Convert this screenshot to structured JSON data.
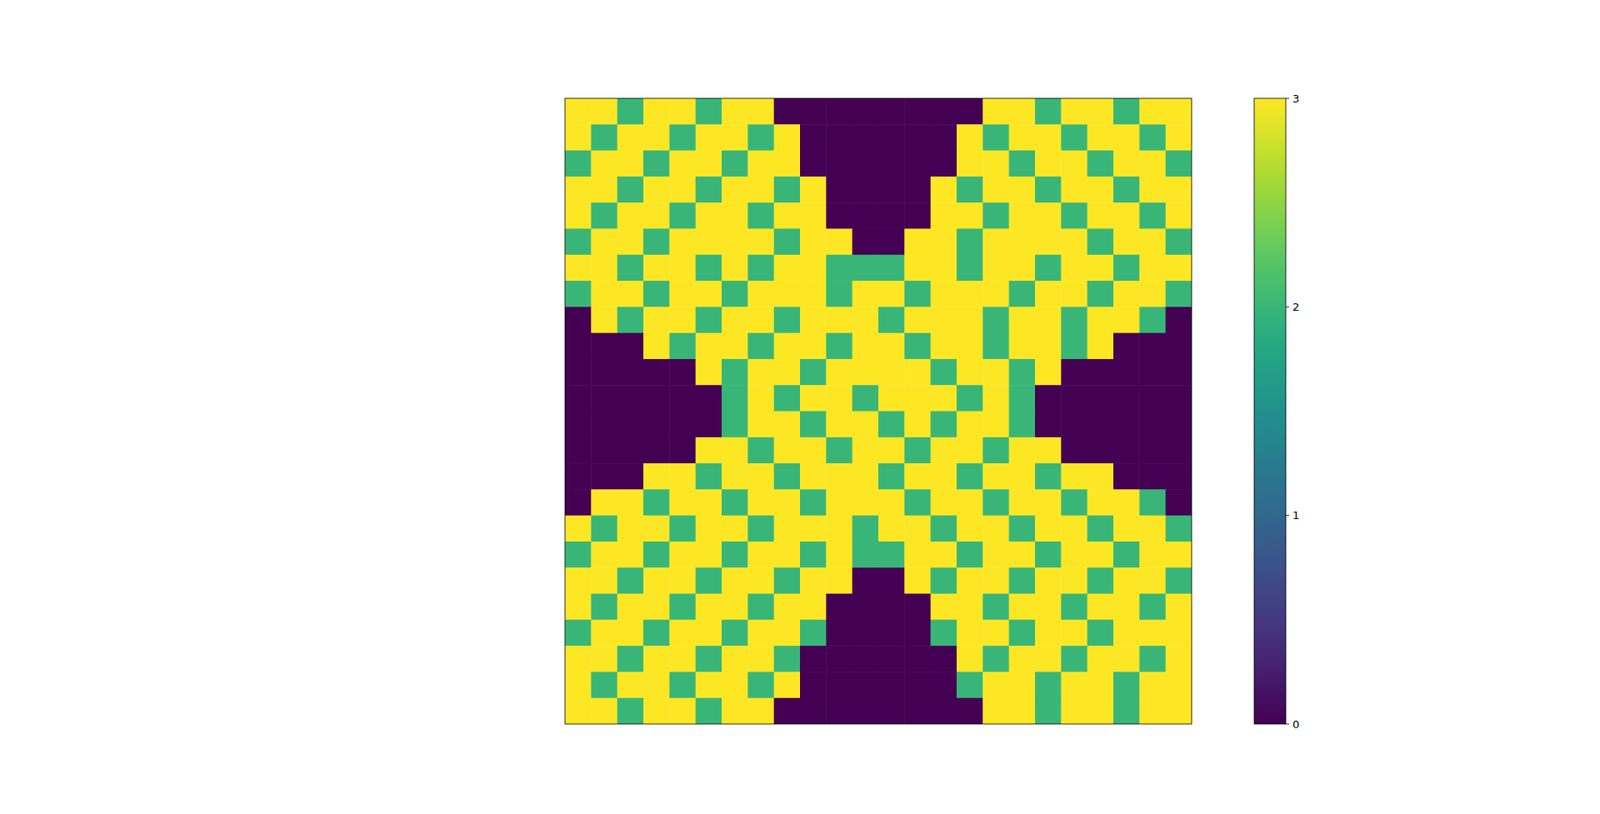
{
  "chart_data": {
    "type": "heatmap",
    "tick_labels": false,
    "cells": [
      [
        3,
        3,
        2,
        3,
        3,
        2,
        3,
        3,
        0,
        0,
        0,
        0,
        0,
        0,
        0,
        0,
        3,
        3,
        2,
        3,
        3,
        2,
        3,
        3
      ],
      [
        3,
        2,
        3,
        3,
        2,
        3,
        3,
        2,
        3,
        0,
        0,
        0,
        0,
        0,
        0,
        3,
        2,
        3,
        3,
        2,
        3,
        3,
        2,
        3
      ],
      [
        2,
        3,
        3,
        2,
        3,
        3,
        2,
        3,
        3,
        0,
        0,
        0,
        0,
        0,
        0,
        3,
        3,
        2,
        3,
        3,
        2,
        3,
        3,
        2
      ],
      [
        3,
        3,
        2,
        3,
        3,
        2,
        3,
        3,
        2,
        3,
        0,
        0,
        0,
        0,
        3,
        2,
        3,
        3,
        2,
        3,
        3,
        2,
        3,
        3
      ],
      [
        3,
        2,
        3,
        3,
        2,
        3,
        3,
        2,
        3,
        3,
        0,
        0,
        0,
        0,
        3,
        3,
        2,
        3,
        3,
        2,
        3,
        3,
        2,
        3
      ],
      [
        2,
        3,
        3,
        2,
        3,
        3,
        3,
        3,
        2,
        3,
        3,
        0,
        0,
        3,
        3,
        2,
        3,
        3,
        3,
        3,
        2,
        3,
        3,
        2
      ],
      [
        3,
        3,
        2,
        3,
        3,
        2,
        3,
        2,
        3,
        3,
        2,
        2,
        2,
        3,
        3,
        2,
        3,
        3,
        2,
        3,
        3,
        2,
        3,
        3
      ],
      [
        2,
        3,
        3,
        2,
        3,
        3,
        2,
        3,
        3,
        3,
        2,
        3,
        3,
        2,
        3,
        3,
        3,
        2,
        3,
        3,
        2,
        3,
        3,
        2
      ],
      [
        0,
        3,
        2,
        3,
        3,
        2,
        3,
        3,
        2,
        3,
        3,
        3,
        2,
        3,
        3,
        3,
        2,
        3,
        3,
        2,
        3,
        3,
        2,
        0
      ],
      [
        0,
        0,
        0,
        3,
        2,
        3,
        3,
        2,
        3,
        3,
        2,
        3,
        3,
        2,
        3,
        3,
        2,
        3,
        3,
        2,
        3,
        0,
        0,
        0
      ],
      [
        0,
        0,
        0,
        0,
        0,
        3,
        2,
        3,
        3,
        2,
        3,
        3,
        3,
        3,
        2,
        3,
        3,
        2,
        3,
        0,
        0,
        0,
        0,
        0
      ],
      [
        0,
        0,
        0,
        0,
        0,
        0,
        2,
        3,
        2,
        3,
        3,
        2,
        3,
        3,
        3,
        2,
        3,
        2,
        0,
        0,
        0,
        0,
        0,
        0
      ],
      [
        0,
        0,
        0,
        0,
        0,
        0,
        2,
        3,
        3,
        2,
        3,
        3,
        2,
        3,
        2,
        3,
        3,
        2,
        0,
        0,
        0,
        0,
        0,
        0
      ],
      [
        0,
        0,
        0,
        0,
        0,
        3,
        3,
        2,
        3,
        3,
        2,
        3,
        3,
        2,
        3,
        3,
        2,
        3,
        3,
        0,
        0,
        0,
        0,
        0
      ],
      [
        0,
        0,
        0,
        3,
        3,
        2,
        3,
        3,
        2,
        3,
        3,
        3,
        2,
        3,
        3,
        2,
        3,
        3,
        2,
        3,
        3,
        0,
        0,
        0
      ],
      [
        0,
        3,
        3,
        2,
        3,
        3,
        2,
        3,
        3,
        2,
        3,
        3,
        3,
        2,
        3,
        3,
        2,
        3,
        3,
        2,
        3,
        3,
        2,
        0
      ],
      [
        3,
        2,
        3,
        3,
        2,
        3,
        3,
        2,
        3,
        3,
        3,
        2,
        3,
        3,
        2,
        3,
        3,
        2,
        3,
        3,
        2,
        3,
        3,
        2
      ],
      [
        2,
        3,
        3,
        2,
        3,
        3,
        2,
        3,
        3,
        2,
        3,
        2,
        2,
        3,
        3,
        2,
        3,
        3,
        2,
        3,
        3,
        2,
        3,
        3
      ],
      [
        3,
        3,
        2,
        3,
        3,
        2,
        3,
        3,
        2,
        3,
        3,
        0,
        0,
        3,
        2,
        3,
        3,
        2,
        3,
        3,
        2,
        3,
        3,
        2
      ],
      [
        3,
        2,
        3,
        3,
        2,
        3,
        3,
        2,
        3,
        3,
        0,
        0,
        0,
        0,
        3,
        3,
        2,
        3,
        3,
        2,
        3,
        3,
        2,
        3
      ],
      [
        2,
        3,
        3,
        2,
        3,
        3,
        2,
        3,
        3,
        2,
        0,
        0,
        0,
        0,
        2,
        3,
        3,
        2,
        3,
        3,
        2,
        3,
        3,
        3
      ],
      [
        3,
        3,
        2,
        3,
        3,
        2,
        3,
        3,
        2,
        0,
        0,
        0,
        0,
        0,
        0,
        3,
        2,
        3,
        3,
        2,
        3,
        3,
        2,
        3
      ],
      [
        3,
        2,
        3,
        3,
        2,
        3,
        3,
        2,
        3,
        0,
        0,
        0,
        0,
        0,
        0,
        2,
        3,
        3,
        2,
        3,
        3,
        2,
        3,
        3
      ],
      [
        3,
        3,
        2,
        3,
        3,
        2,
        3,
        3,
        0,
        0,
        0,
        0,
        0,
        0,
        0,
        0,
        3,
        3,
        2,
        3,
        3,
        2,
        3,
        3
      ]
    ],
    "colorbar": {
      "range": [
        0,
        3
      ],
      "ticks": [
        0,
        1,
        2,
        3
      ]
    }
  }
}
